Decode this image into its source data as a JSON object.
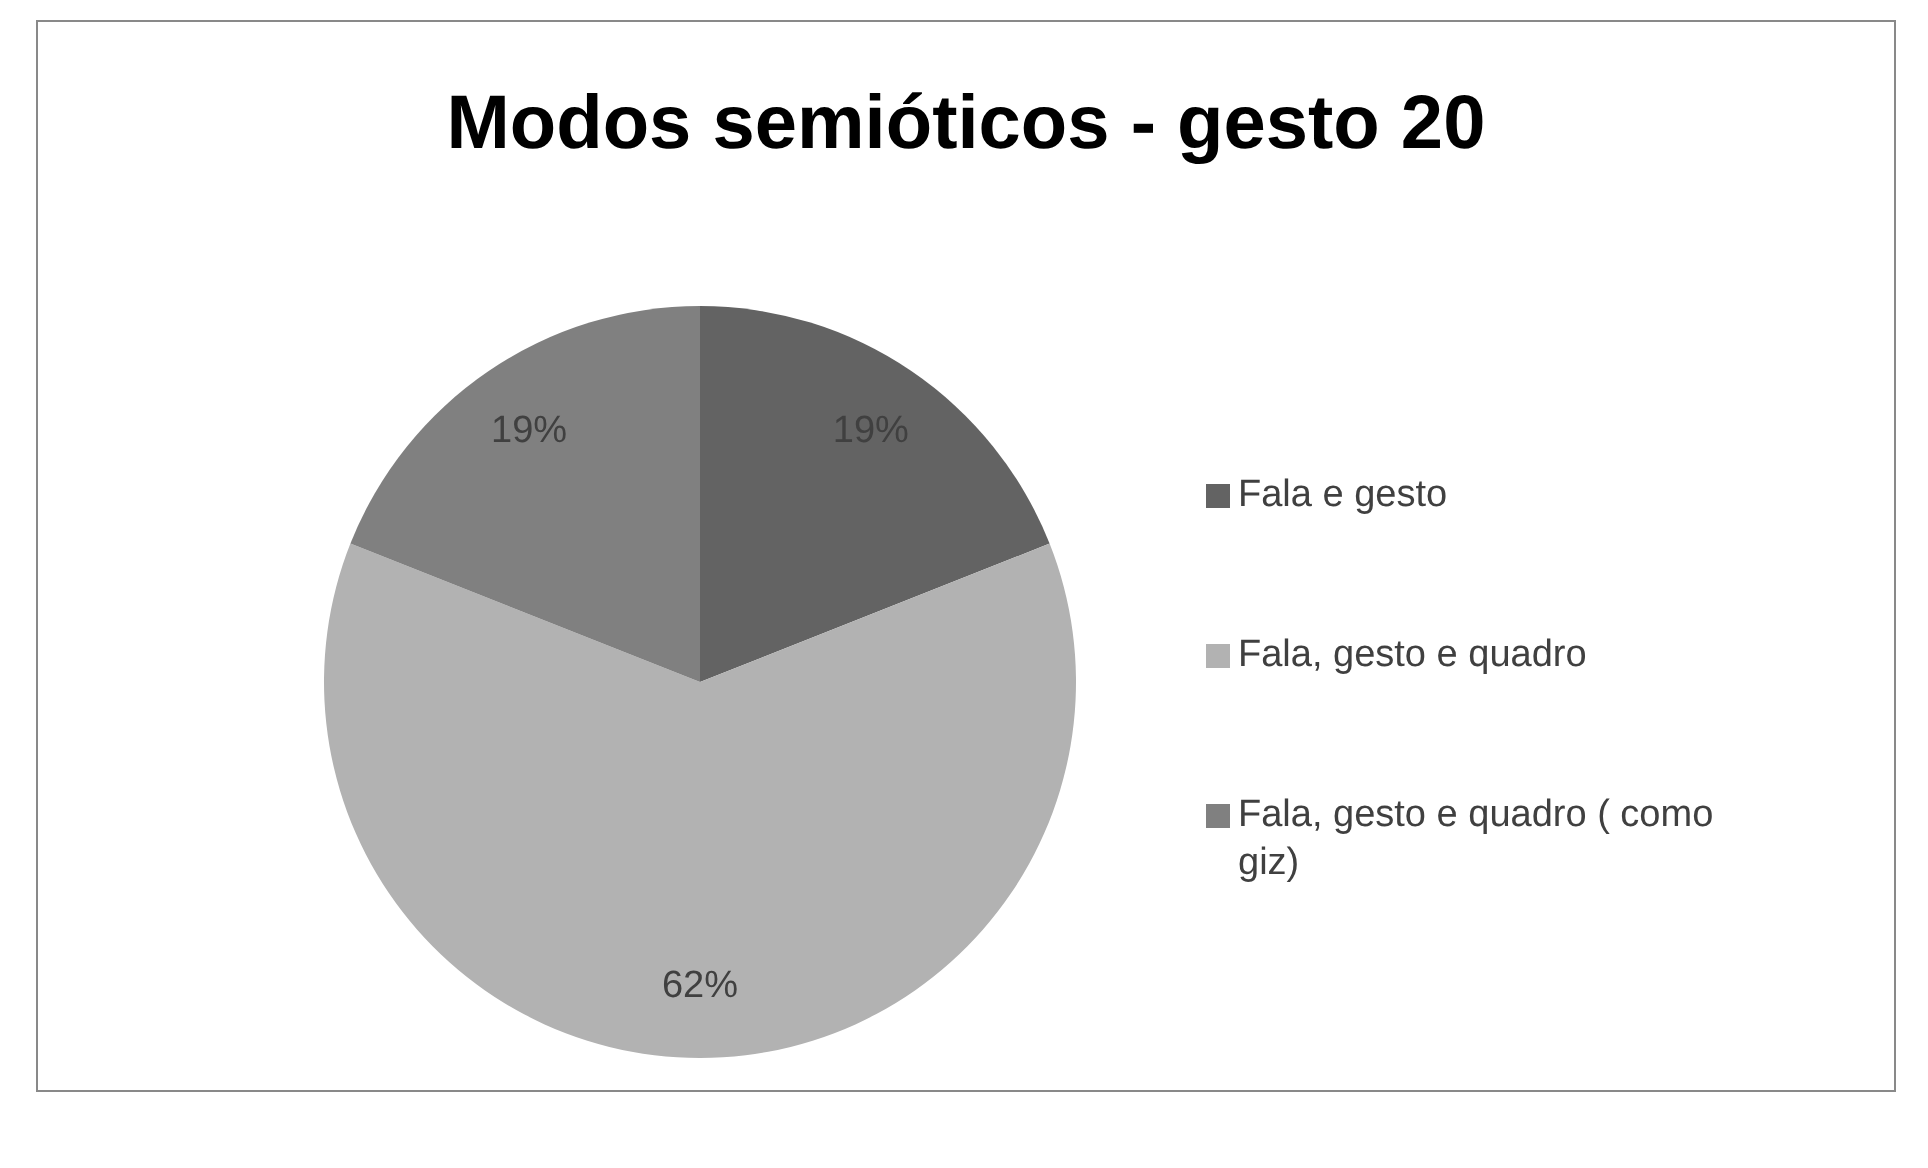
{
  "chart_data": {
    "type": "pie",
    "title": "Modos semióticos - gesto 20",
    "categories": [
      "Fala e gesto",
      "Fala, gesto e quadro",
      "Fala, gesto e quadro ( como giz)"
    ],
    "values": [
      19,
      62,
      19
    ],
    "value_labels": [
      "19%",
      "62%",
      "19%"
    ],
    "colors": [
      "#636363",
      "#b2b2b2",
      "#808080"
    ],
    "legend": "right"
  }
}
